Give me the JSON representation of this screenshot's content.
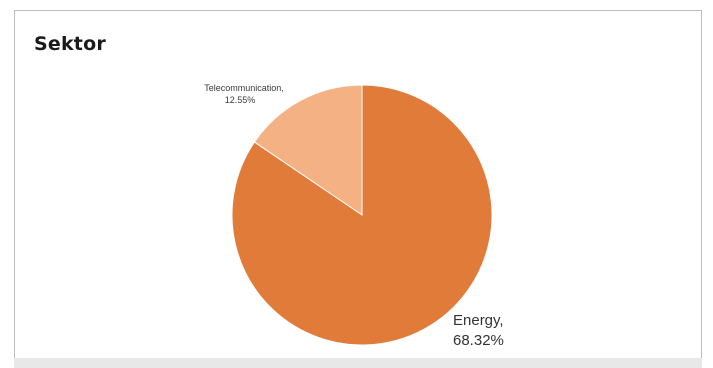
{
  "chart_data": {
    "type": "pie",
    "title": "Sektor",
    "slices": [
      {
        "name": "Telecommunication",
        "value": 12.55,
        "label_line1": "Telecommunication,",
        "label_line2": "12.55%",
        "color": "#f4b183"
      },
      {
        "name": "Energy",
        "value": 68.32,
        "label_line1": "Energy,",
        "label_line2": "68.32%",
        "color": "#e07b39"
      }
    ],
    "start_angle_deg": 0,
    "direction": "counterclockwise",
    "legend": "none"
  },
  "colors": {
    "energy": "#e07b39",
    "telecommunication": "#f4b183",
    "border": "#bdbdbd"
  }
}
